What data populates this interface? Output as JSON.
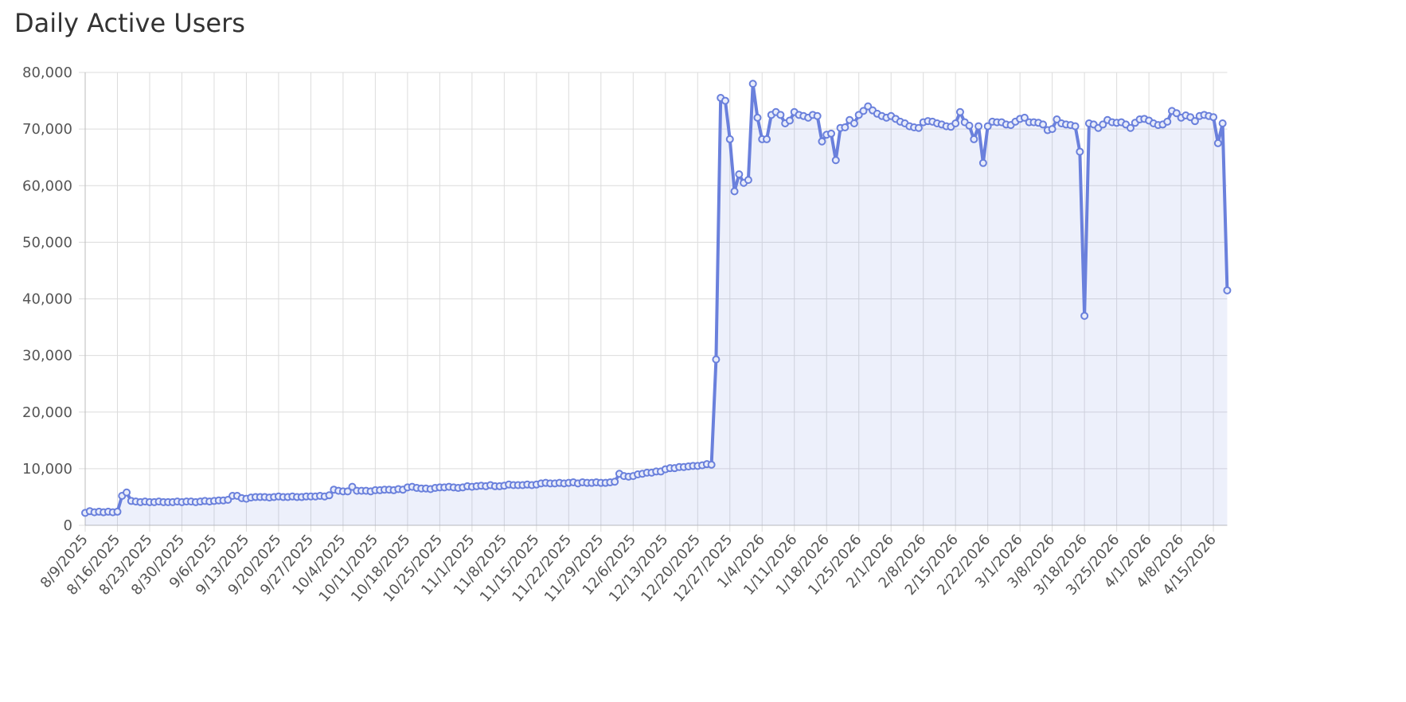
{
  "chart_data": {
    "type": "line",
    "title": "Daily Active Users",
    "color": "#6a80dc",
    "grid": true,
    "ylim": [
      0,
      80000
    ],
    "yticks": [
      0,
      {
        "value": 10000,
        "label": "10,000"
      },
      {
        "value": 20000,
        "label": "20,000"
      },
      {
        "value": 30000,
        "label": "30,000"
      },
      {
        "value": 40000,
        "label": "40,000"
      },
      {
        "value": 50000,
        "label": "50,000"
      },
      {
        "value": 60000,
        "label": "60,000"
      },
      {
        "value": 70000,
        "label": "70,000"
      },
      {
        "value": 80000,
        "label": "80,000"
      }
    ],
    "categories": [
      "8/9/2025",
      null,
      null,
      null,
      null,
      null,
      null,
      "8/16/2025",
      null,
      null,
      null,
      null,
      null,
      null,
      "8/23/2025",
      null,
      null,
      null,
      null,
      null,
      null,
      "8/30/2025",
      null,
      null,
      null,
      null,
      null,
      null,
      "9/6/2025",
      null,
      null,
      null,
      null,
      null,
      null,
      "9/13/2025",
      null,
      null,
      null,
      null,
      null,
      null,
      "9/20/2025",
      null,
      null,
      null,
      null,
      null,
      null,
      "9/27/2025",
      null,
      null,
      null,
      null,
      null,
      null,
      "10/4/2025",
      null,
      null,
      null,
      null,
      null,
      null,
      "10/11/2025",
      null,
      null,
      null,
      null,
      null,
      null,
      "10/18/2025",
      null,
      null,
      null,
      null,
      null,
      null,
      "10/25/2025",
      null,
      null,
      null,
      null,
      null,
      null,
      "11/1/2025",
      null,
      null,
      null,
      null,
      null,
      null,
      "11/8/2025",
      null,
      null,
      null,
      null,
      null,
      null,
      "11/15/2025",
      null,
      null,
      null,
      null,
      null,
      null,
      "11/22/2025",
      null,
      null,
      null,
      null,
      null,
      null,
      "11/29/2025",
      null,
      null,
      null,
      null,
      null,
      null,
      "12/6/2025",
      null,
      null,
      null,
      null,
      null,
      null,
      "12/13/2025",
      null,
      null,
      null,
      null,
      null,
      null,
      "12/20/2025",
      null,
      null,
      null,
      null,
      null,
      null,
      "12/27/2025",
      null,
      null,
      null,
      null,
      null,
      null,
      "1/4/2026",
      null,
      null,
      null,
      null,
      null,
      null,
      "1/11/2026",
      null,
      null,
      null,
      null,
      null,
      null,
      "1/18/2026",
      null,
      null,
      null,
      null,
      null,
      null,
      "1/25/2026",
      null,
      null,
      null,
      null,
      null,
      null,
      "2/1/2026",
      null,
      null,
      null,
      null,
      null,
      null,
      "2/8/2026",
      null,
      null,
      null,
      null,
      null,
      null,
      "2/15/2026",
      null,
      null,
      null,
      null,
      null,
      null,
      "2/22/2026",
      null,
      null,
      null,
      null,
      null,
      null,
      "3/1/2026",
      null,
      null,
      null,
      null,
      null,
      null,
      "3/8/2026",
      null,
      null,
      null,
      null,
      null,
      null,
      "3/18/2026",
      null,
      null,
      null,
      null,
      null,
      null,
      "3/25/2026",
      null,
      null,
      null,
      null,
      null,
      null,
      "4/1/2026",
      null,
      null,
      null,
      null,
      null,
      null,
      "4/8/2026",
      null,
      null,
      null,
      null,
      null,
      null,
      "4/15/2026",
      null,
      null,
      null
    ],
    "values": [
      2200,
      2500,
      2300,
      2400,
      2300,
      2400,
      2300,
      2400,
      5200,
      5800,
      4300,
      4200,
      4100,
      4200,
      4100,
      4100,
      4200,
      4100,
      4100,
      4100,
      4200,
      4100,
      4200,
      4200,
      4100,
      4200,
      4300,
      4200,
      4300,
      4400,
      4400,
      4500,
      5200,
      5200,
      4800,
      4700,
      4900,
      5000,
      5000,
      5000,
      4900,
      5000,
      5100,
      5000,
      5000,
      5100,
      5000,
      5000,
      5100,
      5100,
      5100,
      5200,
      5100,
      5300,
      6300,
      6100,
      6000,
      6000,
      6800,
      6100,
      6100,
      6100,
      6000,
      6200,
      6200,
      6300,
      6300,
      6200,
      6400,
      6300,
      6700,
      6800,
      6600,
      6500,
      6500,
      6400,
      6600,
      6700,
      6700,
      6800,
      6700,
      6600,
      6700,
      6900,
      6800,
      6900,
      7000,
      6900,
      7100,
      6900,
      6900,
      7000,
      7200,
      7100,
      7100,
      7100,
      7200,
      7100,
      7200,
      7400,
      7500,
      7400,
      7400,
      7500,
      7400,
      7500,
      7600,
      7400,
      7600,
      7500,
      7500,
      7600,
      7500,
      7500,
      7600,
      7700,
      9100,
      8700,
      8600,
      8700,
      9000,
      9100,
      9300,
      9300,
      9500,
      9500,
      9900,
      10100,
      10100,
      10300,
      10300,
      10400,
      10500,
      10500,
      10600,
      10800,
      10700,
      29300,
      75500,
      75000,
      68200,
      59000,
      62000,
      60500,
      61000,
      78000,
      72000,
      68200,
      68200,
      72500,
      73000,
      72500,
      71000,
      71500,
      73000,
      72500,
      72300,
      72000,
      72500,
      72300,
      67800,
      69000,
      69200,
      64500,
      70200,
      70300,
      71600,
      71000,
      72500,
      73200,
      74000,
      73300,
      72700,
      72300,
      72000,
      72300,
      71800,
      71300,
      71000,
      70500,
      70300,
      70200,
      71200,
      71400,
      71300,
      71000,
      70800,
      70500,
      70400,
      71000,
      73000,
      71200,
      70600,
      68200,
      70500,
      64000,
      70500,
      71300,
      71200,
      71200,
      70800,
      70700,
      71300,
      71800,
      72000,
      71200,
      71200,
      71100,
      70800,
      69800,
      70000,
      71700,
      71000,
      70800,
      70700,
      70500,
      66000,
      37000,
      71000,
      70800,
      70200,
      70800,
      71600,
      71200,
      71100,
      71200,
      70800,
      70200,
      71100,
      71700,
      71800,
      71500,
      71000,
      70700,
      70800,
      71300,
      73200,
      72800,
      72000,
      72400,
      72100,
      71400,
      72300,
      72500,
      72300,
      72100,
      67500,
      71000,
      41500
    ]
  }
}
